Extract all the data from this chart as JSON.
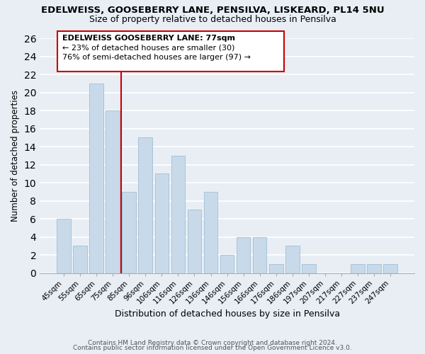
{
  "title": "EDELWEISS, GOOSEBERRY LANE, PENSILVA, LISKEARD, PL14 5NU",
  "subtitle": "Size of property relative to detached houses in Pensilva",
  "xlabel": "Distribution of detached houses by size in Pensilva",
  "ylabel": "Number of detached properties",
  "bar_labels": [
    "45sqm",
    "55sqm",
    "65sqm",
    "75sqm",
    "85sqm",
    "96sqm",
    "106sqm",
    "116sqm",
    "126sqm",
    "136sqm",
    "146sqm",
    "156sqm",
    "166sqm",
    "176sqm",
    "186sqm",
    "197sqm",
    "207sqm",
    "217sqm",
    "227sqm",
    "237sqm",
    "247sqm"
  ],
  "bar_values": [
    6,
    3,
    21,
    18,
    9,
    15,
    11,
    13,
    7,
    9,
    2,
    4,
    4,
    1,
    3,
    1,
    0,
    0,
    1,
    1,
    1
  ],
  "bar_color": "#c8daea",
  "bar_edge_color": "#a8c4d8",
  "vline_color": "#cc0000",
  "annotation_line1": "EDELWEISS GOOSEBERRY LANE: 77sqm",
  "annotation_line2": "← 23% of detached houses are smaller (30)",
  "annotation_line3": "76% of semi-detached houses are larger (97) →",
  "annotation_box_color": "white",
  "annotation_box_edge": "#cc0000",
  "ylim": [
    0,
    26
  ],
  "yticks": [
    0,
    2,
    4,
    6,
    8,
    10,
    12,
    14,
    16,
    18,
    20,
    22,
    24,
    26
  ],
  "footer1": "Contains HM Land Registry data © Crown copyright and database right 2024.",
  "footer2": "Contains public sector information licensed under the Open Government Licence v3.0.",
  "bg_color": "#e8eef4"
}
